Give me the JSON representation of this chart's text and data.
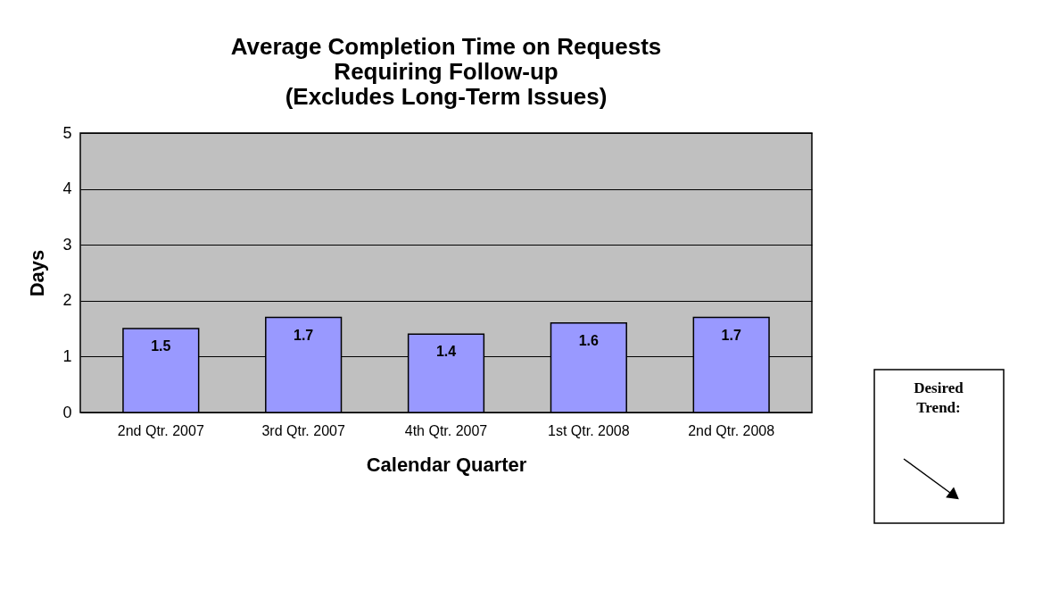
{
  "chart_data": {
    "type": "bar",
    "title": "Average Completion Time on Requests\nRequiring Follow-up\n(Excludes Long-Term Issues)",
    "xlabel": "Calendar Quarter",
    "ylabel": "Days",
    "categories": [
      "2nd Qtr. 2007",
      "3rd Qtr. 2007",
      "4th Qtr. 2007",
      "1st Qtr. 2008",
      "2nd Qtr. 2008"
    ],
    "values": [
      1.5,
      1.7,
      1.4,
      1.6,
      1.7
    ],
    "color": "#9999ff",
    "ylim": [
      0,
      5
    ],
    "yticks": [
      0,
      1,
      2,
      3,
      4,
      5
    ],
    "grid": "y",
    "data_labels": true,
    "annotations": [
      "Desired Trend:"
    ]
  }
}
